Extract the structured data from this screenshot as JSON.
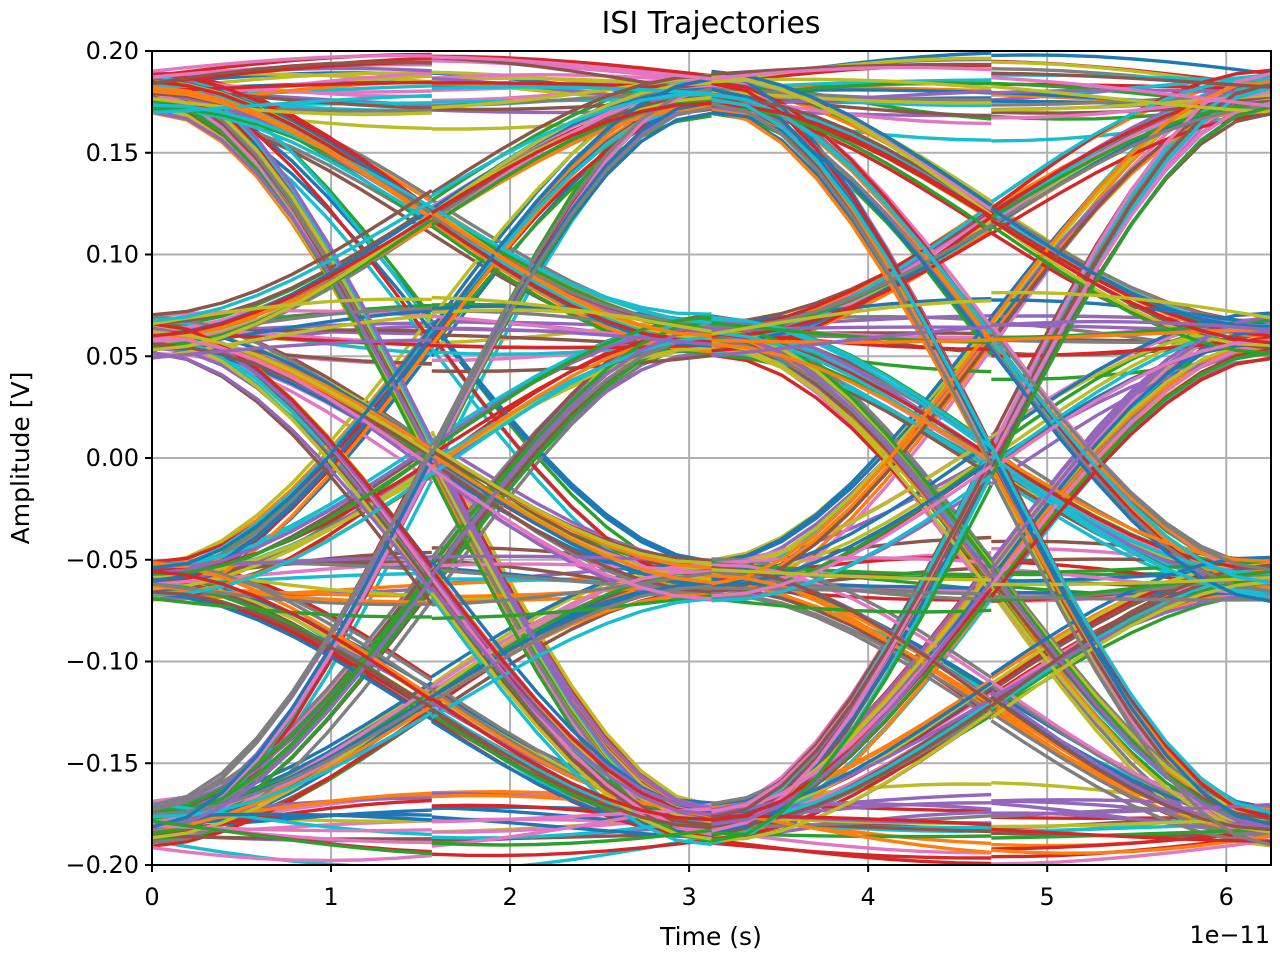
{
  "chart_data": {
    "type": "line",
    "title": "ISI Trajectories",
    "xlabel": "Time (s)",
    "ylabel": "Amplitude [V]",
    "x_multiplier_label": "1e−11",
    "x_scale_exponent": -11,
    "xlim": [
      0,
      6.25e-11
    ],
    "ylim": [
      -0.2,
      0.2
    ],
    "x_ticks": [
      0,
      1e-11,
      2e-11,
      3e-11,
      4e-11,
      5e-11,
      6e-11
    ],
    "x_tick_labels": [
      "0",
      "1",
      "2",
      "3",
      "4",
      "5",
      "6"
    ],
    "y_ticks": [
      0.2,
      0.15,
      0.1,
      0.05,
      0.0,
      -0.05,
      -0.1,
      -0.15,
      -0.2
    ],
    "y_tick_labels": [
      "0.20",
      "0.15",
      "0.10",
      "0.05",
      "0.00",
      "−0.05",
      "−0.10",
      "−0.15",
      "−0.20"
    ],
    "grid": true,
    "symbol_period_s": 3.125e-11,
    "segment_boundaries_s": [
      1.5625e-11,
      3.125e-11,
      4.6875e-11
    ],
    "levels_v": [
      0.18,
      0.06,
      -0.06,
      -0.18
    ],
    "colors": [
      "#1f77b4",
      "#ff7f0e",
      "#2ca02c",
      "#d62728",
      "#9467bd",
      "#8c564b",
      "#e377c2",
      "#7f7f7f",
      "#bcbd22",
      "#17becf"
    ]
  }
}
